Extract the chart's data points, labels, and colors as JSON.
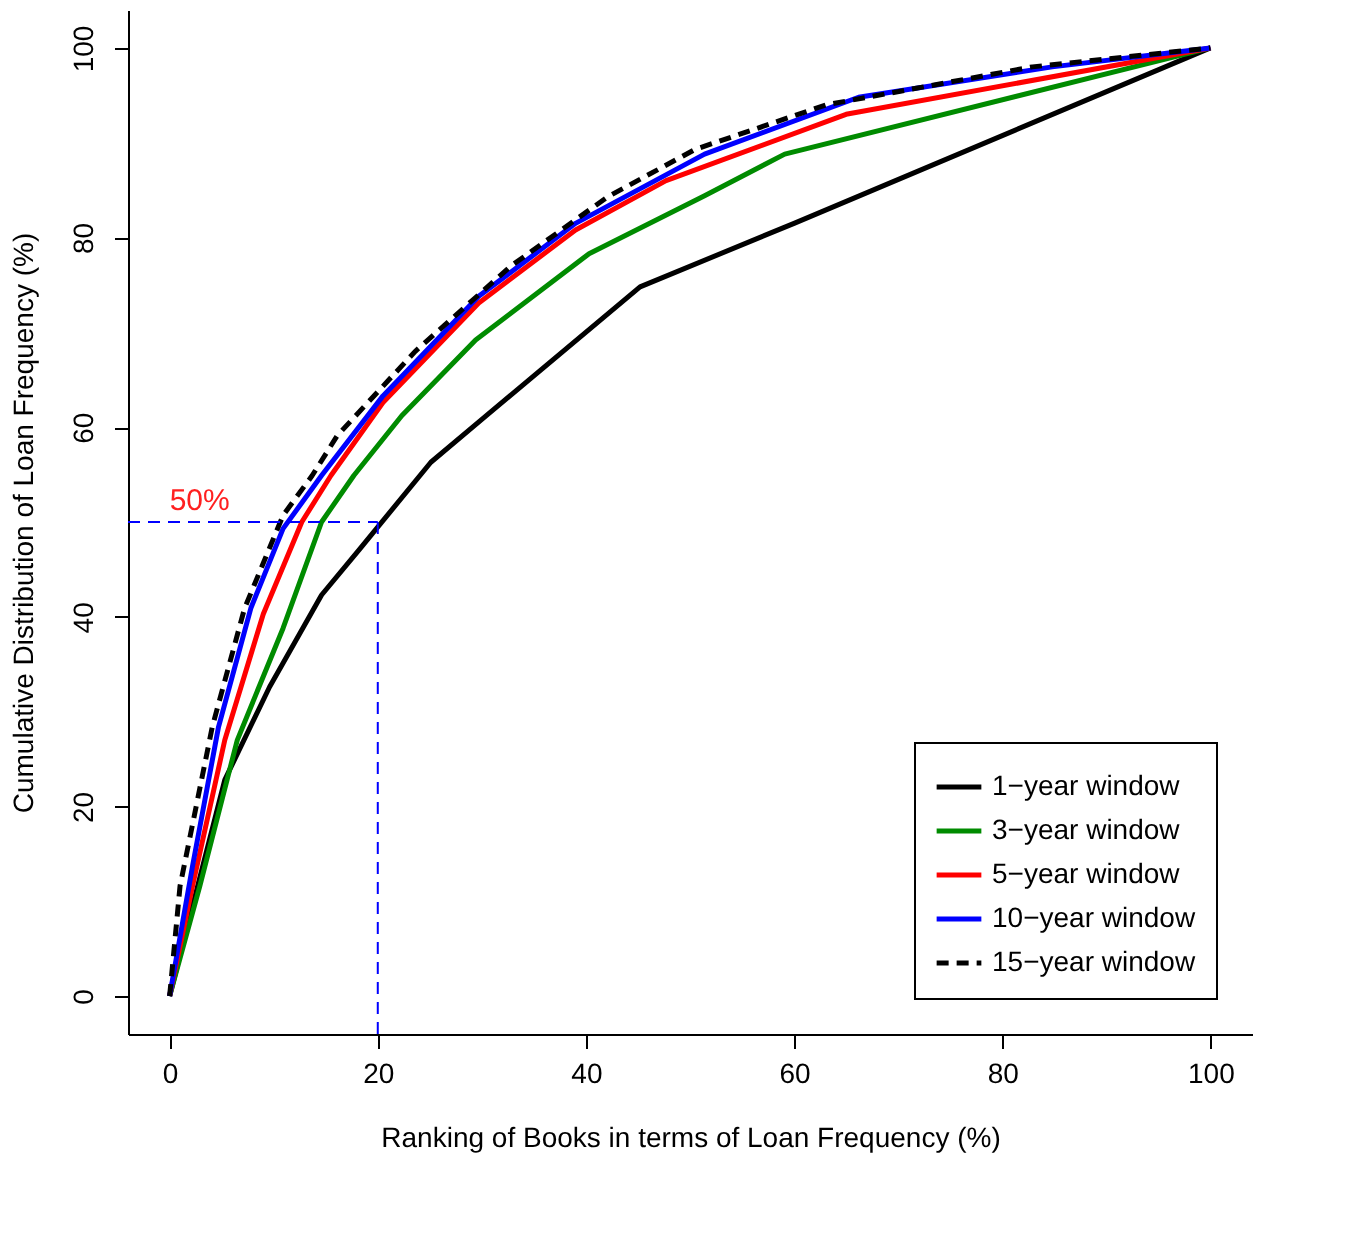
{
  "chart_data": {
    "type": "line",
    "xlabel": "Ranking of Books in terms of Loan Frequency (%)",
    "ylabel": "Cumulative Distribution of Loan Frequency (%)",
    "xlim": [
      -4,
      104
    ],
    "ylim": [
      -4,
      104
    ],
    "xticks": [
      0,
      20,
      40,
      60,
      80,
      100
    ],
    "yticks": [
      0,
      20,
      40,
      60,
      80,
      100
    ],
    "grid": false,
    "legend": "bottom right",
    "series": [
      {
        "name": "1−year window",
        "color": "#000000",
        "line_style": "solid",
        "x": [
          0,
          2.2,
          5.3,
          9.6,
          14.6,
          18.3,
          25.1,
          30.4,
          45.2,
          60,
          100
        ],
        "values": [
          0,
          9.5,
          22.8,
          32.6,
          42.3,
          47.2,
          56.3,
          61.2,
          74.8,
          81.5,
          100
        ]
      },
      {
        "name": "3−year window",
        "color": "#008b00",
        "line_style": "solid",
        "x": [
          0,
          2.9,
          6.5,
          10.9,
          14.6,
          17.7,
          22.3,
          29.4,
          40.3,
          51.4,
          59.1,
          100
        ],
        "values": [
          0,
          11.6,
          27,
          38.8,
          50,
          54.9,
          61.2,
          69.2,
          78.3,
          84.4,
          88.8,
          100
        ]
      },
      {
        "name": "5−year window",
        "color": "#ff0000",
        "line_style": "solid",
        "x": [
          0,
          2.2,
          5.3,
          9.0,
          12.7,
          15.5,
          20.5,
          29.7,
          39,
          47.7,
          65,
          100
        ],
        "values": [
          0,
          11.6,
          27,
          40.3,
          50,
          54.9,
          62.6,
          73.1,
          80.8,
          86,
          93,
          100
        ]
      },
      {
        "name": "10−year window",
        "color": "#0000ff",
        "line_style": "solid",
        "x": [
          0,
          2.2,
          4.7,
          7.8,
          10.9,
          14.6,
          20.5,
          29.7,
          39,
          51.4,
          66.2,
          84.8,
          100
        ],
        "values": [
          0,
          13.7,
          28.4,
          40.9,
          49.3,
          54.9,
          63.3,
          73.8,
          81.5,
          88.8,
          94.8,
          98,
          100
        ]
      },
      {
        "name": "15−year window",
        "color": "#000000",
        "line_style": "dashed",
        "x": [
          0,
          1,
          4.1,
          7.2,
          10.9,
          13.7,
          16.1,
          23.6,
          32.8,
          42.1,
          50.5,
          63.1,
          82.9,
          100
        ],
        "values": [
          0,
          11.6,
          28.4,
          40.9,
          50.7,
          54.9,
          59.1,
          68,
          77,
          84.3,
          89.3,
          94,
          98,
          100
        ]
      }
    ],
    "ref_lines": [
      {
        "axis": "y",
        "value": 50,
        "color": "#0000ff",
        "line_style": "dashed"
      },
      {
        "axis": "x",
        "value": 20,
        "color": "#0000ff",
        "line_style": "dashed"
      }
    ],
    "annotations": [
      {
        "text": "50%",
        "x": 0,
        "y": 50
      }
    ]
  }
}
